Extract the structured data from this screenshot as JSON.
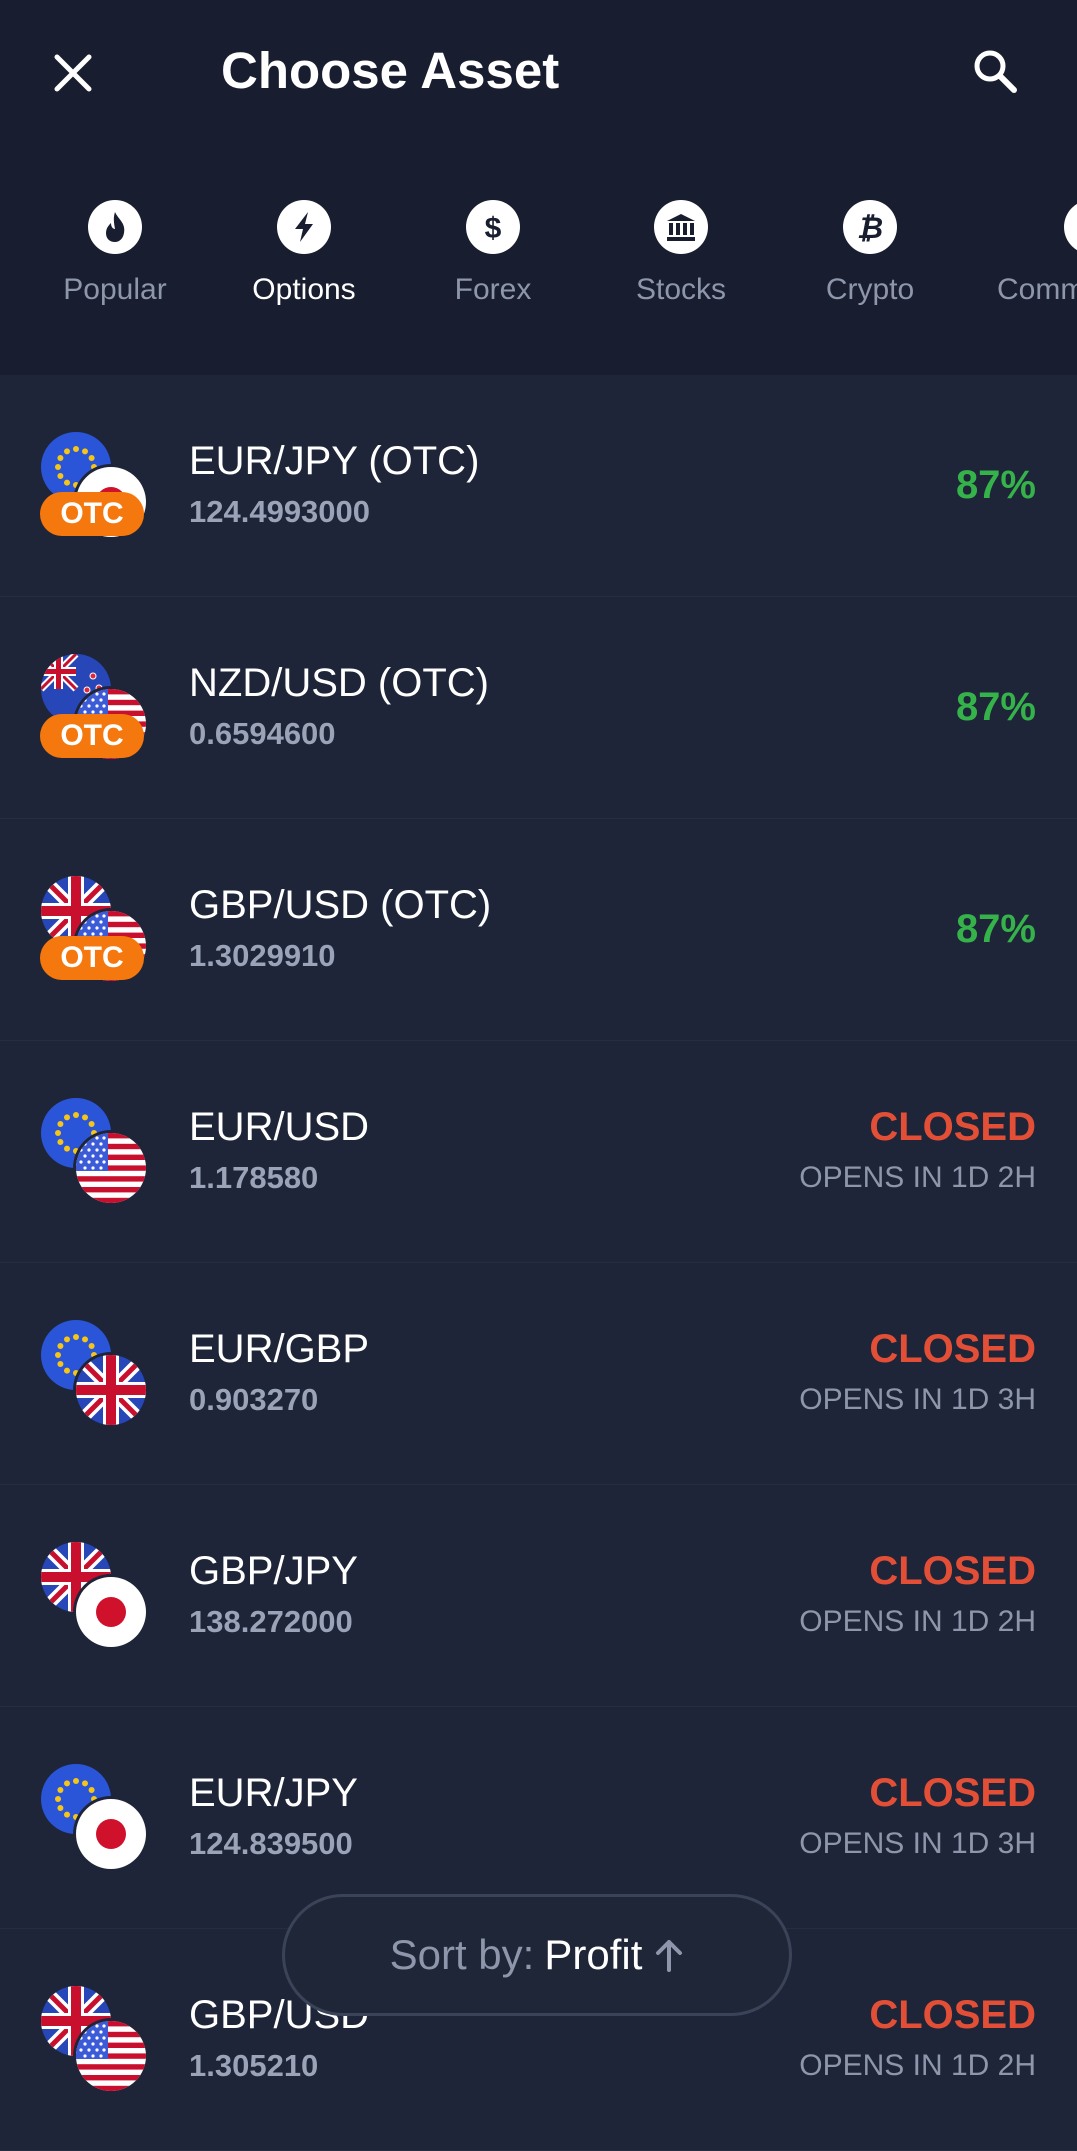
{
  "header": {
    "title": "Choose Asset",
    "close_icon": "close-icon",
    "search_icon": "search-icon"
  },
  "tabs": [
    {
      "label": "Popular",
      "icon": "flame-icon",
      "active": false
    },
    {
      "label": "Options",
      "icon": "lightning-icon",
      "active": true
    },
    {
      "label": "Forex",
      "icon": "dollar-icon",
      "active": false
    },
    {
      "label": "Stocks",
      "icon": "bank-icon",
      "active": false
    },
    {
      "label": "Crypto",
      "icon": "bitcoin-icon",
      "active": false
    },
    {
      "label": "Comm",
      "icon": "commodities-icon",
      "active": false
    }
  ],
  "assets": [
    {
      "name": "EUR/JPY (OTC)",
      "price": "124.4993000",
      "profit": "87%",
      "otc": "OTC"
    },
    {
      "name": "NZD/USD (OTC)",
      "price": "0.6594600",
      "profit": "87%",
      "otc": "OTC"
    },
    {
      "name": "GBP/USD (OTC)",
      "price": "1.3029910",
      "profit": "87%",
      "otc": "OTC"
    },
    {
      "name": "EUR/USD",
      "price": "1.178580",
      "status": "CLOSED",
      "opens": "OPENS IN 1D 2H"
    },
    {
      "name": "EUR/GBP",
      "price": "0.903270",
      "status": "CLOSED",
      "opens": "OPENS IN 1D 3H"
    },
    {
      "name": "GBP/JPY",
      "price": "138.272000",
      "status": "CLOSED",
      "opens": "OPENS IN 1D 2H"
    },
    {
      "name": "EUR/JPY",
      "price": "124.839500",
      "status": "CLOSED",
      "opens": "OPENS IN 1D 3H"
    },
    {
      "name": "GBP/USD",
      "price": "1.305210",
      "status": "CLOSED",
      "opens": "OPENS IN 1D 2H"
    }
  ],
  "sort": {
    "label": "Sort by:",
    "value": "Profit",
    "icon": "arrow-up-icon"
  },
  "colors": {
    "profit": "#35b34a",
    "closed": "#e34f36",
    "otc_badge": "#f5780e",
    "background": "#1e2538",
    "header_background": "#181e2f"
  }
}
